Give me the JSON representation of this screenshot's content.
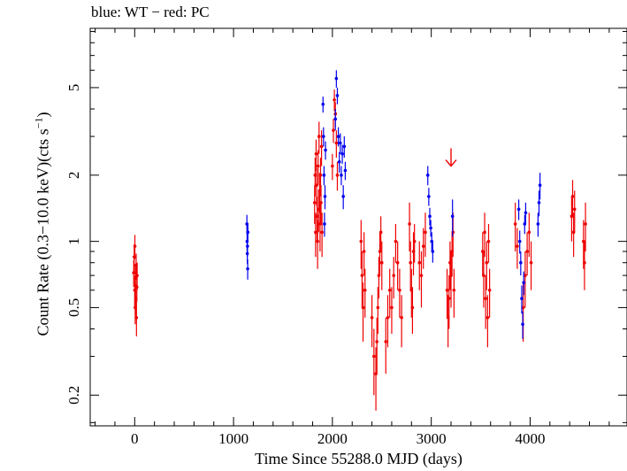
{
  "chart_data": {
    "type": "scatter",
    "title": "blue: WT − red: PC",
    "xlabel": "Time Since 55288.0 MJD (days)",
    "ylabel_main": "Count Rate (0.3−10.0 keV)(cts s",
    "ylabel_sup": "−1",
    "ylabel_end": ")",
    "xlim": [
      -450,
      4980
    ],
    "ylim": [
      0.145,
      9.3
    ],
    "yscale": "log",
    "grid": false,
    "x_ticks": [
      0,
      1000,
      2000,
      3000,
      4000
    ],
    "y_ticks": [
      0.2,
      0.5,
      1,
      2,
      5
    ],
    "y_tick_labels": [
      "0.2",
      "0.5",
      "1",
      "2",
      "5"
    ],
    "colors": {
      "WT": "#0000ee",
      "PC": "#ee0000",
      "axis": "#000000"
    },
    "series": [
      {
        "mode": "WT",
        "points": [
          [
            1135,
            1.2,
            0.12
          ],
          [
            1137,
            1.0,
            0.1
          ],
          [
            1139,
            0.88,
            0.09
          ],
          [
            1141,
            0.95,
            0.1
          ],
          [
            1143,
            0.75,
            0.08
          ],
          [
            1145,
            1.1,
            0.11
          ],
          [
            1905,
            4.2,
            0.35
          ],
          [
            1910,
            3.0,
            0.3
          ],
          [
            1915,
            2.0,
            0.2
          ],
          [
            1920,
            1.2,
            0.15
          ],
          [
            1925,
            1.6,
            0.2
          ],
          [
            1930,
            2.6,
            0.25
          ],
          [
            2030,
            3.6,
            0.4
          ],
          [
            2040,
            5.5,
            0.5
          ],
          [
            2050,
            4.6,
            0.4
          ],
          [
            2060,
            3.0,
            0.3
          ],
          [
            2070,
            2.3,
            0.25
          ],
          [
            2080,
            2.8,
            0.3
          ],
          [
            2090,
            2.0,
            0.2
          ],
          [
            2100,
            2.5,
            0.25
          ],
          [
            2110,
            1.6,
            0.2
          ],
          [
            2120,
            2.7,
            0.3
          ],
          [
            2130,
            2.1,
            0.2
          ],
          [
            2965,
            2.0,
            0.2
          ],
          [
            2975,
            1.6,
            0.15
          ],
          [
            2985,
            1.3,
            0.12
          ],
          [
            2995,
            1.15,
            0.1
          ],
          [
            3005,
            1.0,
            0.1
          ],
          [
            3015,
            0.9,
            0.1
          ],
          [
            3215,
            1.3,
            0.25
          ],
          [
            3885,
            1.4,
            0.15
          ],
          [
            3895,
            1.0,
            0.12
          ],
          [
            3905,
            0.8,
            0.1
          ],
          [
            3915,
            0.55,
            0.08
          ],
          [
            3925,
            0.42,
            0.06
          ],
          [
            3935,
            0.65,
            0.08
          ],
          [
            3945,
            1.2,
            0.12
          ],
          [
            3955,
            1.35,
            0.15
          ],
          [
            4080,
            1.2,
            0.15
          ],
          [
            4090,
            1.5,
            0.2
          ],
          [
            4100,
            1.8,
            0.25
          ]
        ]
      },
      {
        "mode": "PC",
        "points": [
          [
            -10,
            0.72,
            0.1
          ],
          [
            -5,
            0.85,
            0.12
          ],
          [
            0,
            0.6,
            0.1
          ],
          [
            2,
            0.95,
            0.12
          ],
          [
            5,
            0.5,
            0.08
          ],
          [
            8,
            0.68,
            0.1
          ],
          [
            12,
            0.55,
            0.09
          ],
          [
            15,
            0.78,
            0.1
          ],
          [
            18,
            0.45,
            0.08
          ],
          [
            22,
            0.62,
            0.09
          ],
          [
            25,
            0.7,
            0.1
          ],
          [
            1820,
            1.5,
            0.3
          ],
          [
            1825,
            2.0,
            0.4
          ],
          [
            1830,
            1.1,
            0.25
          ],
          [
            1835,
            2.5,
            0.4
          ],
          [
            1840,
            1.8,
            0.35
          ],
          [
            1845,
            1.3,
            0.3
          ],
          [
            1850,
            1.0,
            0.25
          ],
          [
            1855,
            2.2,
            0.4
          ],
          [
            1860,
            1.4,
            0.3
          ],
          [
            1865,
            3.0,
            0.5
          ],
          [
            1870,
            1.7,
            0.35
          ],
          [
            1875,
            1.2,
            0.3
          ],
          [
            1880,
            2.0,
            0.4
          ],
          [
            1885,
            1.5,
            0.3
          ],
          [
            1890,
            2.7,
            0.5
          ],
          [
            1895,
            1.1,
            0.25
          ],
          [
            2000,
            2.2,
            0.3
          ],
          [
            2010,
            3.2,
            0.4
          ],
          [
            2020,
            4.4,
            0.5
          ],
          [
            2030,
            3.8,
            0.5
          ],
          [
            2040,
            2.8,
            0.4
          ],
          [
            2050,
            2.0,
            0.3
          ],
          [
            2290,
            1.0,
            0.25
          ],
          [
            2300,
            0.7,
            0.2
          ],
          [
            2310,
            0.5,
            0.15
          ],
          [
            2320,
            0.9,
            0.2
          ],
          [
            2330,
            0.6,
            0.15
          ],
          [
            2400,
            0.45,
            0.12
          ],
          [
            2420,
            0.3,
            0.1
          ],
          [
            2440,
            0.25,
            0.08
          ],
          [
            2450,
            0.35,
            0.1
          ],
          [
            2460,
            0.5,
            0.12
          ],
          [
            2470,
            0.7,
            0.15
          ],
          [
            2480,
            0.9,
            0.2
          ],
          [
            2490,
            1.1,
            0.2
          ],
          [
            2500,
            0.8,
            0.2
          ],
          [
            2540,
            0.35,
            0.1
          ],
          [
            2560,
            0.45,
            0.12
          ],
          [
            2580,
            0.6,
            0.15
          ],
          [
            2600,
            0.5,
            0.12
          ],
          [
            2620,
            0.7,
            0.15
          ],
          [
            2640,
            1.0,
            0.2
          ],
          [
            2660,
            0.8,
            0.2
          ],
          [
            2680,
            0.6,
            0.15
          ],
          [
            2700,
            0.45,
            0.12
          ],
          [
            2780,
            1.2,
            0.3
          ],
          [
            2790,
            0.8,
            0.2
          ],
          [
            2800,
            0.6,
            0.15
          ],
          [
            2810,
            0.5,
            0.12
          ],
          [
            2820,
            0.9,
            0.2
          ],
          [
            2830,
            1.0,
            0.2
          ],
          [
            2880,
            0.8,
            0.2
          ],
          [
            2900,
            0.7,
            0.2
          ],
          [
            2920,
            0.95,
            0.2
          ],
          [
            2940,
            1.1,
            0.25
          ],
          [
            3160,
            0.6,
            0.15
          ],
          [
            3170,
            0.45,
            0.12
          ],
          [
            3180,
            0.55,
            0.15
          ],
          [
            3190,
            0.8,
            0.2
          ],
          [
            3200,
            0.7,
            0.2
          ],
          [
            3210,
            0.9,
            0.2
          ],
          [
            3220,
            1.1,
            0.25
          ],
          [
            3230,
            0.6,
            0.15
          ],
          [
            3520,
            0.9,
            0.2
          ],
          [
            3530,
            0.7,
            0.2
          ],
          [
            3540,
            1.1,
            0.25
          ],
          [
            3550,
            0.55,
            0.15
          ],
          [
            3560,
            0.8,
            0.2
          ],
          [
            3570,
            0.45,
            0.12
          ],
          [
            3580,
            1.0,
            0.2
          ],
          [
            3590,
            0.6,
            0.15
          ],
          [
            3850,
            1.2,
            0.3
          ],
          [
            3870,
            0.95,
            0.2
          ],
          [
            3930,
            0.5,
            0.15
          ],
          [
            3950,
            0.7,
            0.2
          ],
          [
            3970,
            0.9,
            0.2
          ],
          [
            3990,
            1.1,
            0.25
          ],
          [
            4010,
            0.8,
            0.2
          ],
          [
            4420,
            1.3,
            0.3
          ],
          [
            4430,
            1.6,
            0.3
          ],
          [
            4440,
            1.1,
            0.25
          ],
          [
            4450,
            1.4,
            0.3
          ],
          [
            4540,
            1.0,
            0.25
          ],
          [
            4550,
            0.8,
            0.2
          ],
          [
            4560,
            1.2,
            0.3
          ]
        ]
      }
    ],
    "upper_limits": [
      {
        "mode": "PC",
        "x": 3200,
        "y": 2.2
      }
    ]
  }
}
